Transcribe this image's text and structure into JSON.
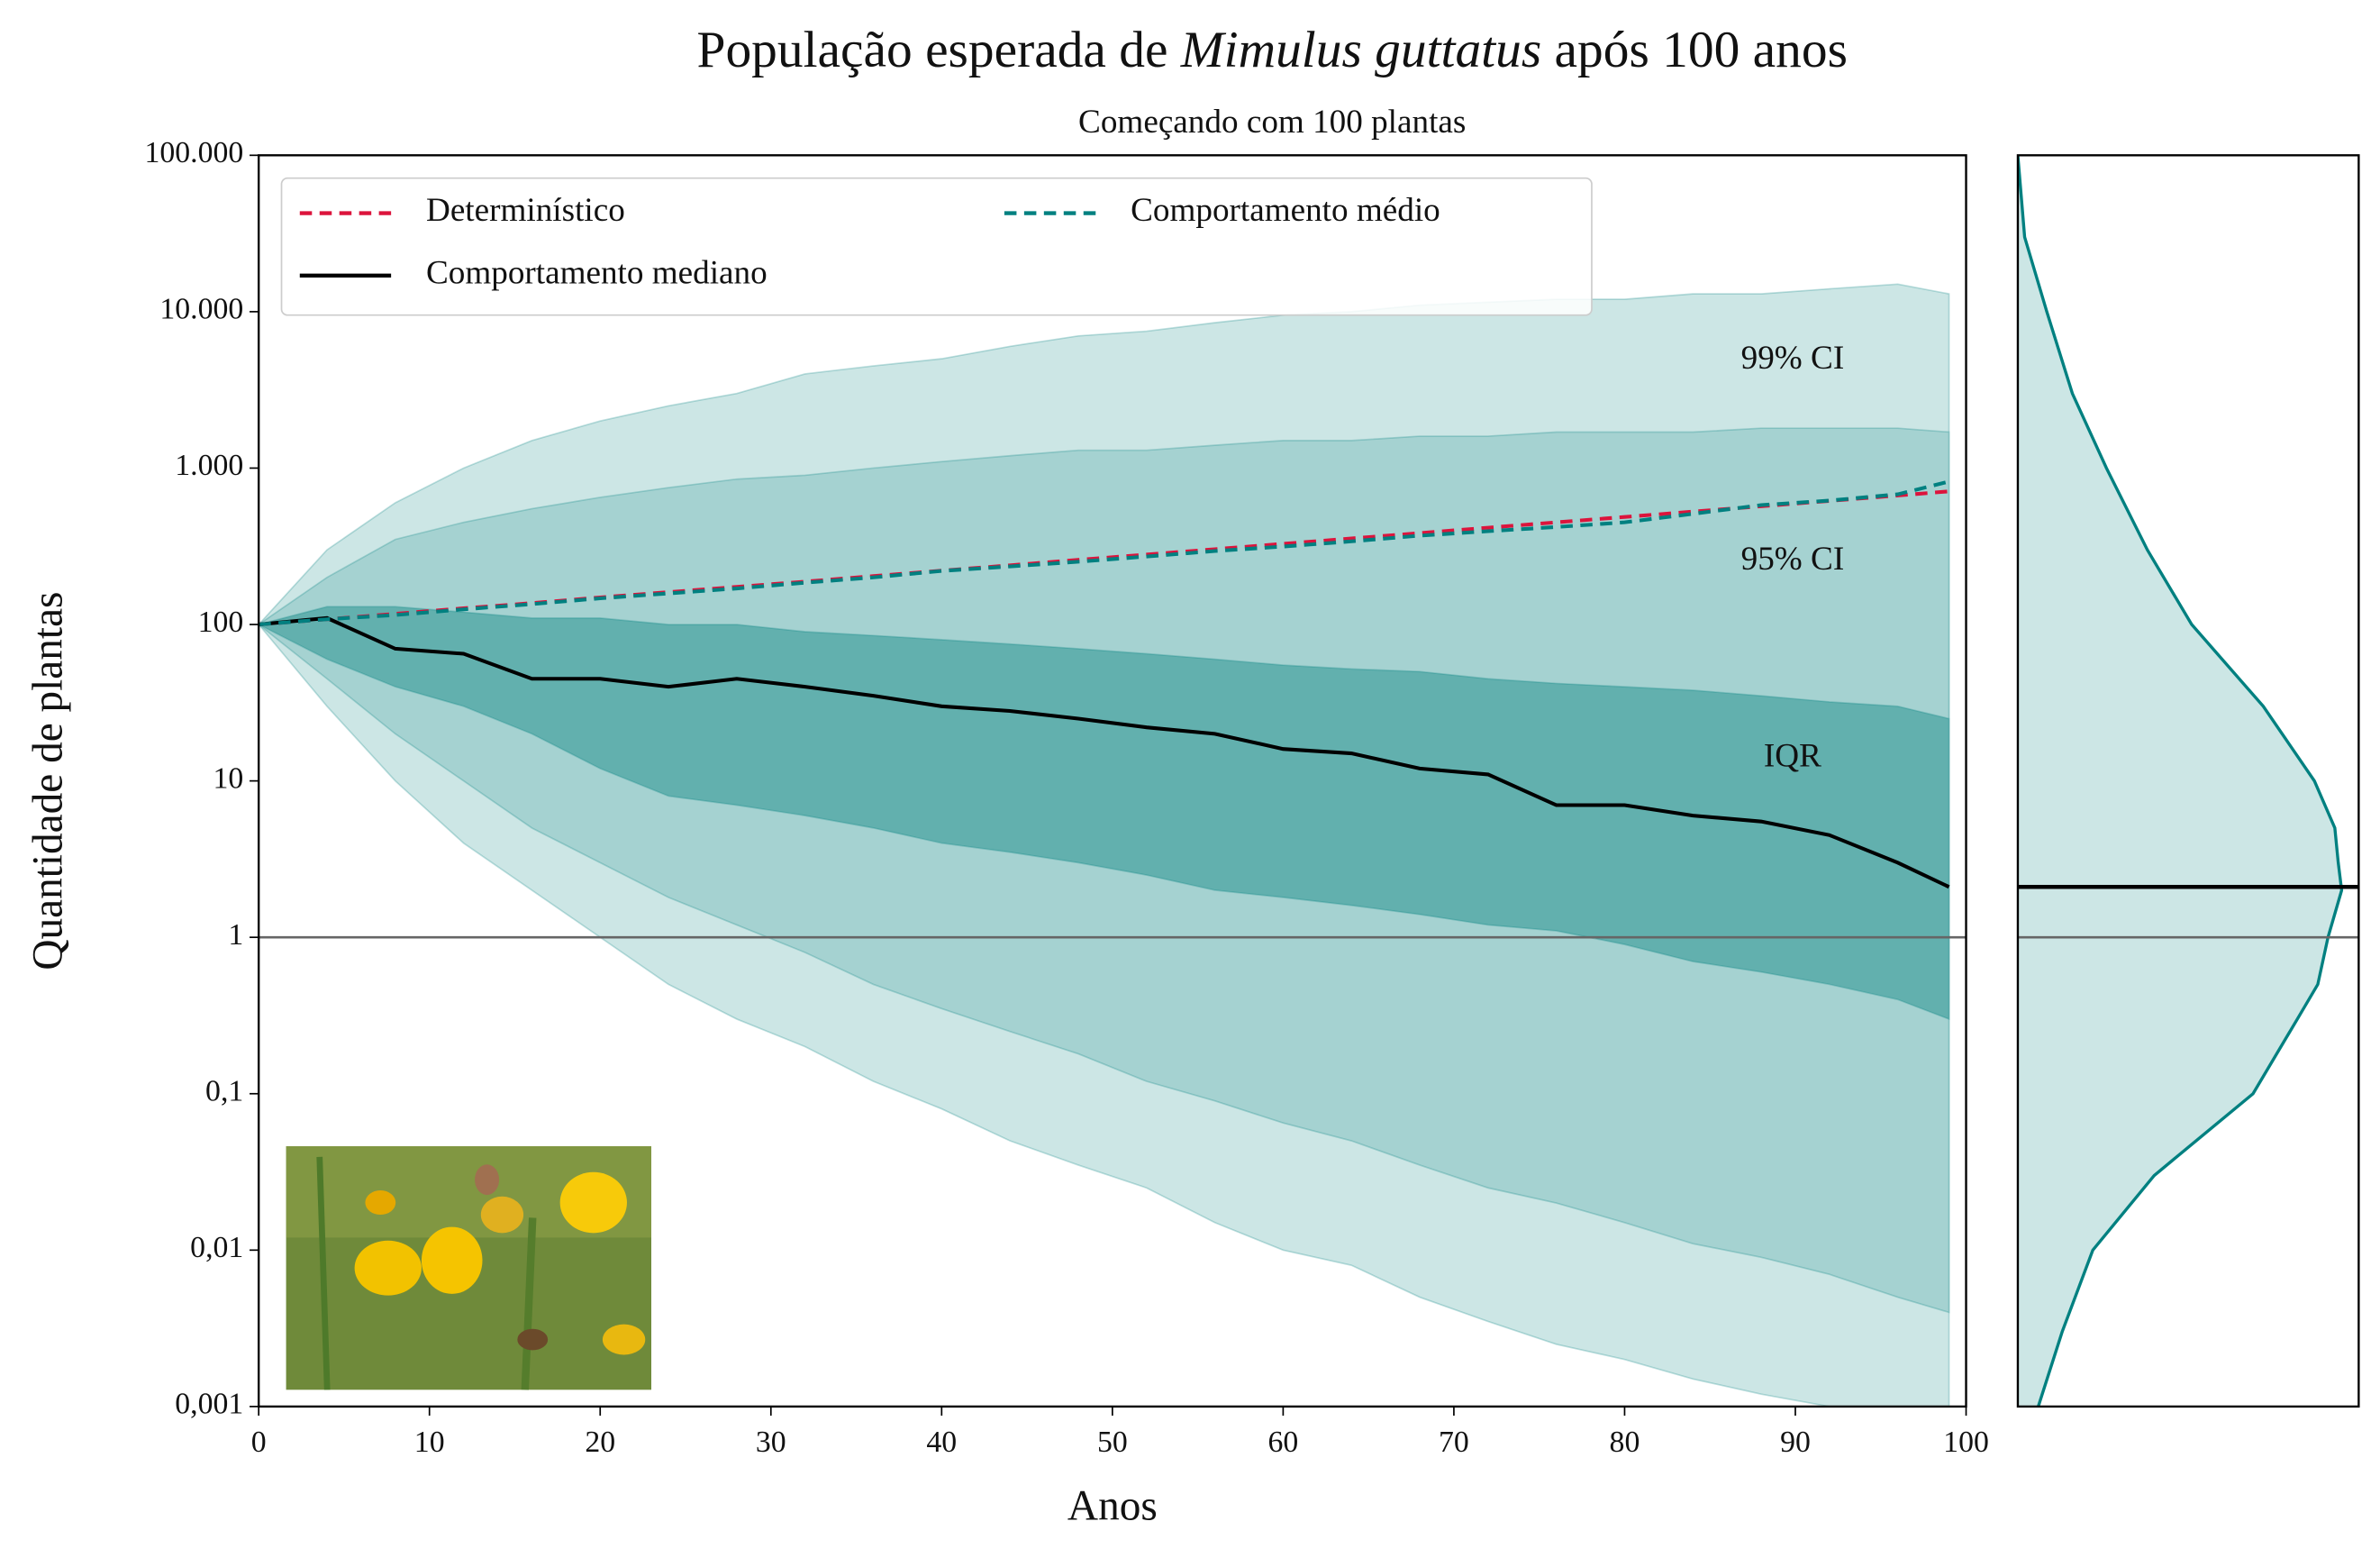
{
  "chart_data": [
    {
      "type": "fan",
      "title": {
        "before": "População esperada de ",
        "species": "Mimulus guttatus",
        "after": " após 100 anos"
      },
      "subtitle": "Começando com 100 plantas",
      "xlabel": "Anos",
      "ylabel": "Quantidade de plantas",
      "log_y": true,
      "legend": "upper left",
      "x": [
        0,
        4,
        8,
        12,
        16,
        20,
        24,
        28,
        32,
        36,
        40,
        44,
        48,
        52,
        56,
        60,
        64,
        68,
        72,
        76,
        80,
        84,
        88,
        92,
        96,
        99
      ],
      "xlim": [
        0,
        100
      ],
      "xticks": [
        0,
        10,
        20,
        30,
        40,
        50,
        60,
        70,
        80,
        90,
        100
      ],
      "ylim": [
        0.001,
        100000
      ],
      "yticks": [
        {
          "value": 0.001,
          "label": "0,001"
        },
        {
          "value": 0.01,
          "label": "0,01"
        },
        {
          "value": 0.1,
          "label": "0,1"
        },
        1,
        10,
        100,
        {
          "value": 1000,
          "label": "1.000"
        },
        {
          "value": 10000,
          "label": "10.000"
        },
        {
          "value": 100000,
          "label": "100.000"
        }
      ],
      "reference_line": 1,
      "bands": [
        {
          "name": "99% CI",
          "color": "#cce6e5",
          "upper": [
            100,
            300,
            600,
            1000,
            1500,
            2000,
            2500,
            3000,
            4000,
            4500,
            5000,
            6000,
            7000,
            7500,
            8500,
            9500,
            10000,
            11000,
            11500,
            12000,
            12000,
            13000,
            13000,
            14000,
            15000,
            13000
          ],
          "lower": [
            100,
            30,
            10,
            4,
            2,
            1,
            0.5,
            0.3,
            0.2,
            0.12,
            0.08,
            0.05,
            0.035,
            0.025,
            0.015,
            0.01,
            0.008,
            0.005,
            0.0035,
            0.0025,
            0.002,
            0.0015,
            0.0012,
            0.001,
            0.001,
            0.0005
          ]
        },
        {
          "name": "95% CI",
          "color": "#a5d2d1",
          "upper": [
            100,
            200,
            350,
            450,
            550,
            650,
            750,
            850,
            900,
            1000,
            1100,
            1200,
            1300,
            1300,
            1400,
            1500,
            1500,
            1600,
            1600,
            1700,
            1700,
            1700,
            1800,
            1800,
            1800,
            1700
          ],
          "lower": [
            100,
            45,
            20,
            10,
            5,
            3,
            1.8,
            1.2,
            0.8,
            0.5,
            0.35,
            0.25,
            0.18,
            0.12,
            0.09,
            0.065,
            0.05,
            0.035,
            0.025,
            0.02,
            0.015,
            0.011,
            0.009,
            0.007,
            0.005,
            0.004
          ]
        },
        {
          "name": "IQR",
          "color": "#62b0ae",
          "upper": [
            100,
            130,
            130,
            120,
            110,
            110,
            100,
            100,
            90,
            85,
            80,
            75,
            70,
            65,
            60,
            55,
            52,
            50,
            45,
            42,
            40,
            38,
            35,
            32,
            30,
            25
          ],
          "lower": [
            100,
            60,
            40,
            30,
            20,
            12,
            8,
            7,
            6,
            5,
            4,
            3.5,
            3,
            2.5,
            2,
            1.8,
            1.6,
            1.4,
            1.2,
            1.1,
            0.9,
            0.7,
            0.6,
            0.5,
            0.4,
            0.3
          ]
        }
      ],
      "series": [
        {
          "name": "Determinístico",
          "color": "#dc143c",
          "dashed": true,
          "values": [
            100,
            108,
            117,
            127,
            137,
            149,
            161,
            174,
            188,
            204,
            221,
            239,
            259,
            280,
            303,
            328,
            355,
            384,
            416,
            450,
            487,
            527,
            570,
            617,
            668,
            710
          ]
        },
        {
          "name": "Comportamento mediano",
          "color": "#000000",
          "dashed": false,
          "values": [
            100,
            110,
            70,
            65,
            45,
            45,
            40,
            45,
            40,
            35,
            30,
            28,
            25,
            22,
            20,
            16,
            15,
            12,
            11,
            7,
            7,
            6,
            5.5,
            4.5,
            3,
            2.1
          ]
        },
        {
          "name": "Comportamento médio",
          "color": "#008080",
          "dashed": true,
          "values": [
            100,
            108,
            115,
            125,
            135,
            147,
            158,
            170,
            185,
            200,
            220,
            235,
            252,
            272,
            295,
            315,
            340,
            370,
            395,
            420,
            450,
            510,
            580,
            620,
            680,
            820
          ]
        }
      ]
    },
    {
      "type": "density",
      "color": "#008080",
      "fill": "#cce6e5",
      "y": [
        0.001,
        0.003,
        0.01,
        0.03,
        0.1,
        0.3,
        0.5,
        1,
        2,
        3,
        5,
        10,
        30,
        100,
        300,
        1000,
        3000,
        10000,
        30000,
        100000
      ],
      "density": [
        0.06,
        0.13,
        0.22,
        0.4,
        0.69,
        0.82,
        0.88,
        0.91,
        0.95,
        0.94,
        0.93,
        0.87,
        0.72,
        0.51,
        0.38,
        0.26,
        0.16,
        0.085,
        0.02,
        0.0
      ],
      "xlim": [
        0,
        1
      ],
      "ylim": [
        0.001,
        100000
      ],
      "log_y": true,
      "median": 2.1,
      "reference_line": 1
    }
  ]
}
